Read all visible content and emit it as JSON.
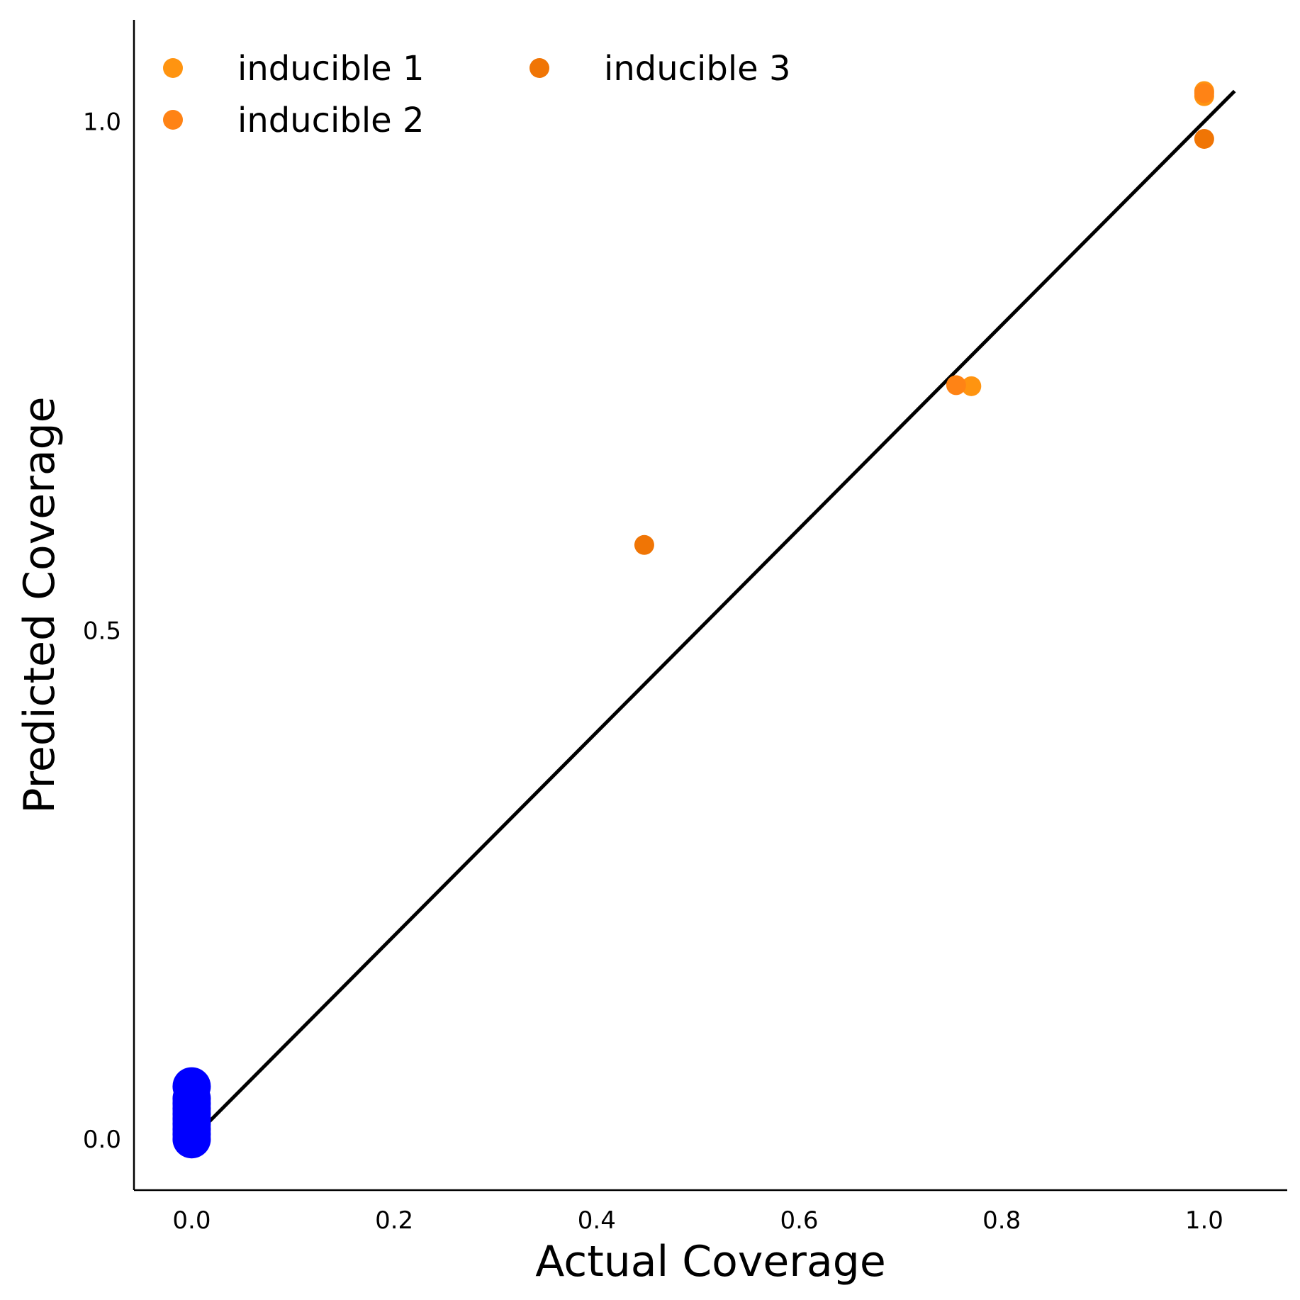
{
  "chart_data": {
    "type": "scatter",
    "title": "",
    "xlabel": "Actual Coverage",
    "ylabel": "Predicted Coverage",
    "xlim": [
      -0.057,
      1.082
    ],
    "ylim": [
      -0.05,
      1.1
    ],
    "xticks": [
      0.0,
      0.2,
      0.4,
      0.6,
      0.8,
      1.0
    ],
    "xtick_labels": [
      "0.0",
      "0.2",
      "0.4",
      "0.6",
      "0.8",
      "1.0"
    ],
    "yticks": [
      0.0,
      0.5,
      1.0
    ],
    "ytick_labels": [
      "0.0",
      "0.5",
      "1.0"
    ],
    "grid": false,
    "legend": {
      "placement": "top-left",
      "columns": 2
    },
    "reference_line": {
      "x": [
        0.0,
        1.03
      ],
      "y": [
        0.0,
        1.03
      ],
      "color": "#000000"
    },
    "series": [
      {
        "name": "inducible 1",
        "color": "#FF9410",
        "points": [
          [
            0.77,
            0.74
          ],
          [
            1.0,
            1.03
          ],
          [
            1.0,
            1.025
          ]
        ]
      },
      {
        "name": "inducible 2",
        "color": "#FF8315",
        "points": [
          [
            0.755,
            0.741
          ],
          [
            1.0,
            1.028
          ]
        ]
      },
      {
        "name": "inducible 3",
        "color": "#F07505",
        "points": [
          [
            0.447,
            0.584
          ],
          [
            1.0,
            0.983
          ]
        ]
      },
      {
        "name": "",
        "color": "#0000FF",
        "points": [
          [
            0.0,
            0.0
          ],
          [
            0.0,
            0.005
          ],
          [
            0.0,
            0.01
          ],
          [
            0.0,
            0.015
          ],
          [
            0.0,
            0.02
          ],
          [
            0.0,
            0.025
          ],
          [
            0.0,
            0.03
          ],
          [
            0.0,
            0.035
          ],
          [
            0.0,
            0.04
          ],
          [
            0.0,
            0.052
          ]
        ]
      }
    ]
  }
}
